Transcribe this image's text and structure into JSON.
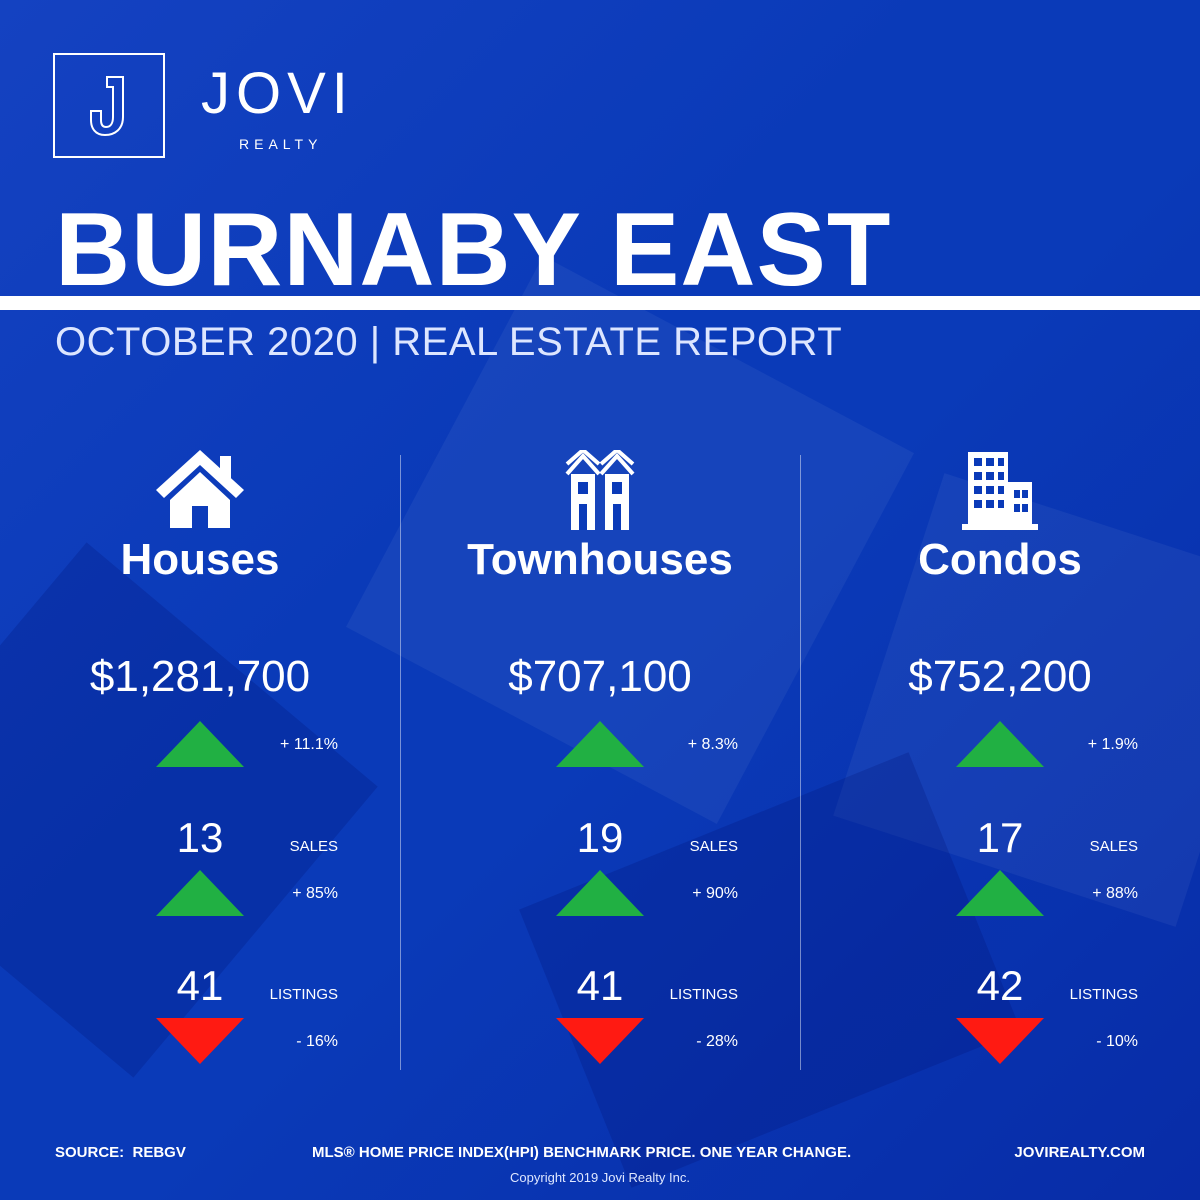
{
  "brand": {
    "name": "JOVI",
    "sub": "REALTY"
  },
  "title": "BURNABY EAST",
  "subtitle": "OCTOBER 2020 | REAL ESTATE REPORT",
  "columns": [
    {
      "icon": "house-icon",
      "name": "Houses",
      "price": "$1,281,700",
      "price_change": "+ 11.1%",
      "price_trend": "up",
      "sales": "13",
      "sales_label": "SALES",
      "sales_change": "+ 85%",
      "sales_trend": "up",
      "listings": "41",
      "listings_label": "LISTINGS",
      "listings_change": "- 16%",
      "listings_trend": "down"
    },
    {
      "icon": "townhouse-icon",
      "name": "Townhouses",
      "price": "$707,100",
      "price_change": "+ 8.3%",
      "price_trend": "up",
      "sales": "19",
      "sales_label": "SALES",
      "sales_change": "+ 90%",
      "sales_trend": "up",
      "listings": "41",
      "listings_label": "LISTINGS",
      "listings_change": "- 28%",
      "listings_trend": "down"
    },
    {
      "icon": "condo-building-icon",
      "name": "Condos",
      "price": "$752,200",
      "price_change": "+ 1.9%",
      "price_trend": "up",
      "sales": "17",
      "sales_label": "SALES",
      "sales_change": "+ 88%",
      "sales_trend": "up",
      "listings": "42",
      "listings_label": "LISTINGS",
      "listings_change": "- 10%",
      "listings_trend": "down"
    }
  ],
  "footer": {
    "source": "SOURCE:  REBGV",
    "note": "MLS® HOME PRICE INDEX(HPI) BENCHMARK PRICE. ONE YEAR CHANGE.",
    "url": "JOVIREALTY.COM",
    "copyright": "Copyright 2019 Jovi Realty Inc."
  },
  "colors": {
    "background": "#0a3ab8",
    "up": "#21b043",
    "down": "#ff1a12",
    "text": "#ffffff"
  }
}
